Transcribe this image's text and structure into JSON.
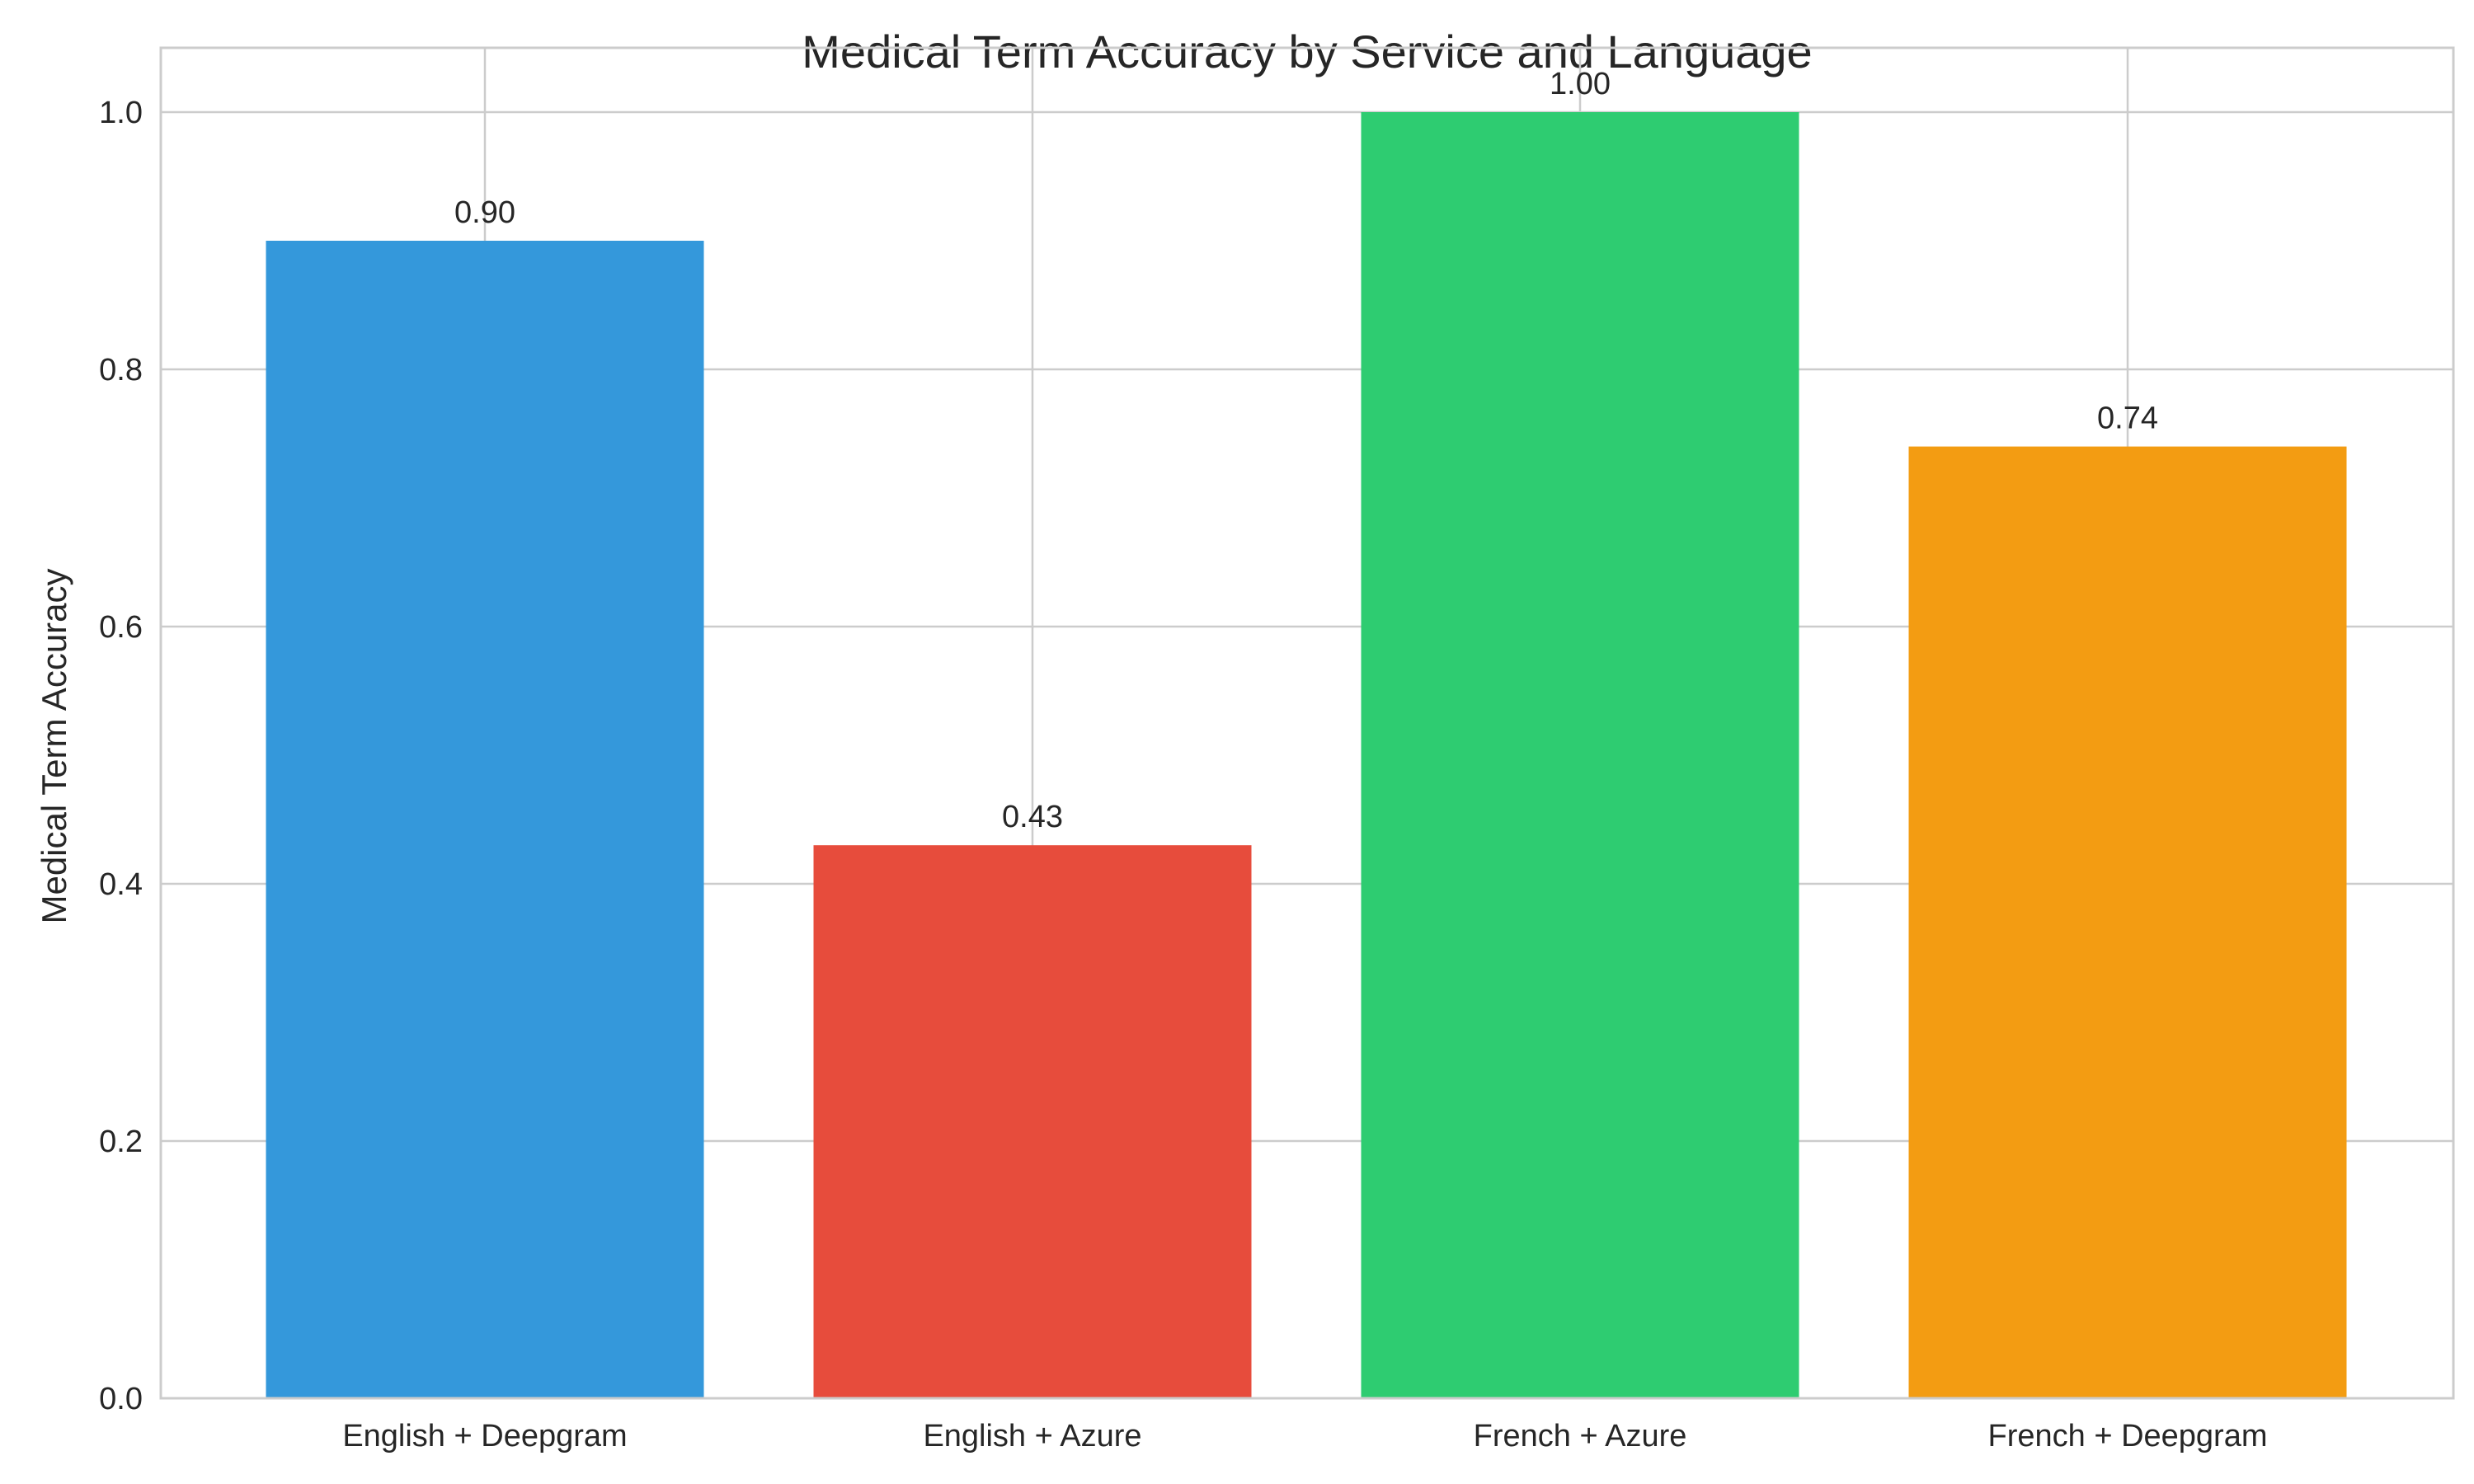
{
  "chart_data": {
    "type": "bar",
    "title": "Medical Term Accuracy by Service and Language",
    "xlabel": "",
    "ylabel": "Medical Term Accuracy",
    "categories": [
      "English + Deepgram",
      "English + Azure",
      "French + Azure",
      "French + Deepgram"
    ],
    "values": [
      0.9,
      0.43,
      1.0,
      0.74
    ],
    "value_labels": [
      "0.90",
      "0.43",
      "1.00",
      "0.74"
    ],
    "colors": [
      "#3498db",
      "#e74c3c",
      "#2ecc71",
      "#f39c12"
    ],
    "ylim": [
      0,
      1.05
    ],
    "yticks": [
      0.0,
      0.2,
      0.4,
      0.6,
      0.8,
      1.0
    ],
    "ytick_labels": [
      "0.0",
      "0.2",
      "0.4",
      "0.6",
      "0.8",
      "1.0"
    ],
    "grid": true,
    "legend": "none"
  }
}
